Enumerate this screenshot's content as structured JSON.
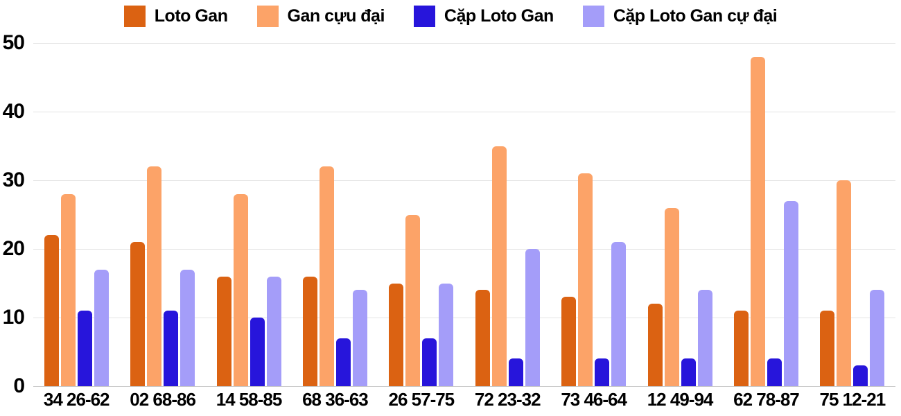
{
  "legend": {
    "items": [
      {
        "label": "Loto Gan",
        "color": "#db6212"
      },
      {
        "label": "Gan cựu đại",
        "color": "#fca368"
      },
      {
        "label": "Cặp Loto Gan",
        "color": "#2715db"
      },
      {
        "label": "Cặp Loto Gan cự đại",
        "color": "#a49df9"
      }
    ]
  },
  "chart_data": {
    "type": "bar",
    "title": "",
    "xlabel": "",
    "ylabel": "",
    "categories": [
      "34 26-62",
      "02 68-86",
      "14 58-85",
      "68 36-63",
      "26 57-75",
      "72 23-32",
      "73 46-64",
      "12 49-94",
      "62 78-87",
      "75 12-21"
    ],
    "series": [
      {
        "name": "Loto Gan",
        "color": "#db6212",
        "values": [
          22,
          21,
          16,
          16,
          15,
          14,
          13,
          12,
          11,
          11
        ]
      },
      {
        "name": "Gan cựu đại",
        "color": "#fca368",
        "values": [
          28,
          32,
          28,
          32,
          25,
          35,
          31,
          26,
          48,
          30
        ]
      },
      {
        "name": "Cặp Loto Gan",
        "color": "#2715db",
        "values": [
          11,
          11,
          10,
          7,
          7,
          4,
          4,
          4,
          4,
          3
        ]
      },
      {
        "name": "Cặp Loto Gan cự đại",
        "color": "#a49df9",
        "values": [
          17,
          17,
          16,
          14,
          15,
          20,
          21,
          14,
          27,
          14
        ]
      }
    ],
    "y_ticks": [
      0,
      10,
      20,
      30,
      40,
      50
    ],
    "ylim": [
      0,
      50
    ],
    "grid": true,
    "legend_position": "top",
    "colors": {
      "gridline": "#e3e3e3",
      "baseline": "#c9c9c9",
      "text": "#000000",
      "background": "#ffffff"
    }
  }
}
